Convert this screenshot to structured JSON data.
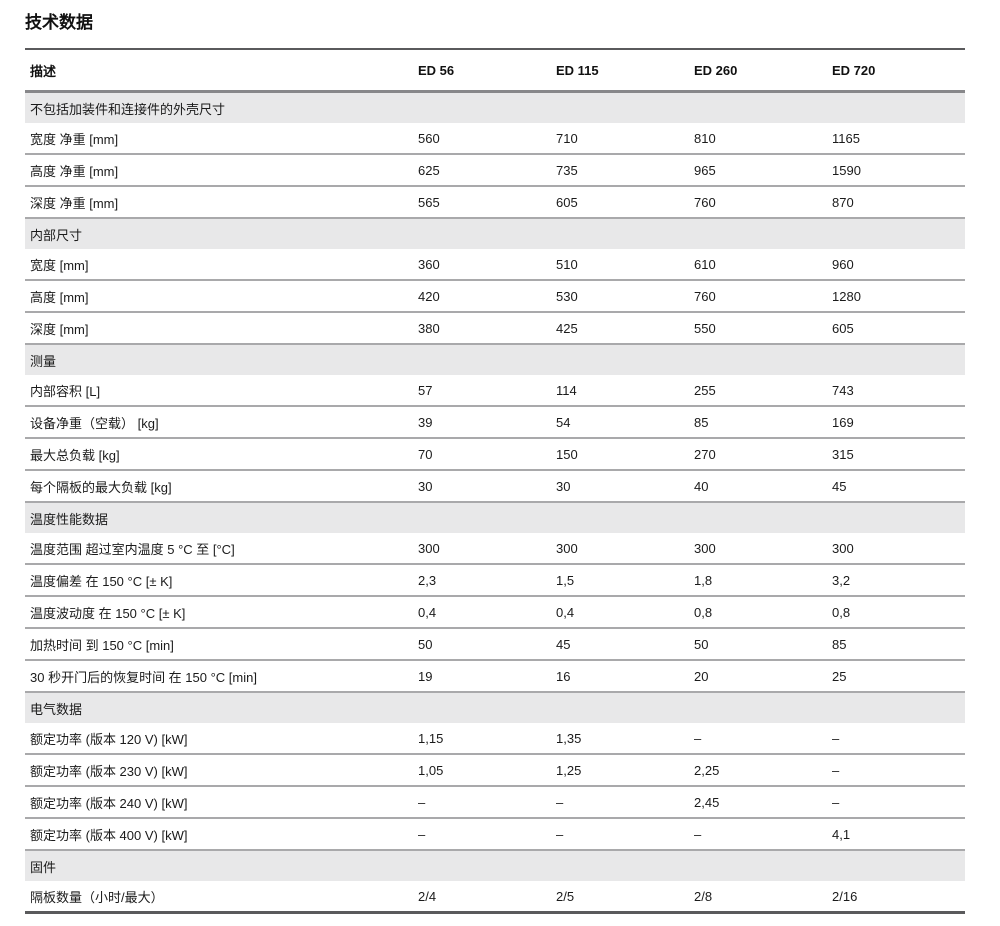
{
  "page_title": "技术数据",
  "colors": {
    "section_row_background": "#e8e8e9",
    "row_separator_line": "#a9a9ab",
    "table_border_line": "#5a5a5c"
  },
  "table": {
    "columns": [
      "描述",
      "ED 56",
      "ED 115",
      "ED 260",
      "ED 720"
    ],
    "sections": [
      {
        "header": "不包括加装件和连接件的外壳尺寸",
        "rows": [
          {
            "label": "宽度 净重 [mm]",
            "values": [
              "560",
              "710",
              "810",
              "1165"
            ]
          },
          {
            "label": "高度 净重 [mm]",
            "values": [
              "625",
              "735",
              "965",
              "1590"
            ]
          },
          {
            "label": "深度 净重 [mm]",
            "values": [
              "565",
              "605",
              "760",
              "870"
            ]
          }
        ]
      },
      {
        "header": "内部尺寸",
        "rows": [
          {
            "label": "宽度 [mm]",
            "values": [
              "360",
              "510",
              "610",
              "960"
            ]
          },
          {
            "label": "高度 [mm]",
            "values": [
              "420",
              "530",
              "760",
              "1280"
            ]
          },
          {
            "label": "深度 [mm]",
            "values": [
              "380",
              "425",
              "550",
              "605"
            ]
          }
        ]
      },
      {
        "header": "测量",
        "rows": [
          {
            "label": "内部容积 [L]",
            "values": [
              "57",
              "114",
              "255",
              "743"
            ]
          },
          {
            "label": "设备净重（空载） [kg]",
            "values": [
              "39",
              "54",
              "85",
              "169"
            ]
          },
          {
            "label": "最大总负载 [kg]",
            "values": [
              "70",
              "150",
              "270",
              "315"
            ]
          },
          {
            "label": "每个隔板的最大负载 [kg]",
            "values": [
              "30",
              "30",
              "40",
              "45"
            ]
          }
        ]
      },
      {
        "header": "温度性能数据",
        "rows": [
          {
            "label": "温度范围 超过室内温度 5 °C 至 [°C]",
            "values": [
              "300",
              "300",
              "300",
              "300"
            ]
          },
          {
            "label": "温度偏差 在 150 °C [± K]",
            "values": [
              "2,3",
              "1,5",
              "1,8",
              "3,2"
            ]
          },
          {
            "label": "温度波动度 在 150 °C [± K]",
            "values": [
              "0,4",
              "0,4",
              "0,8",
              "0,8"
            ]
          },
          {
            "label": "加热时间 到 150 °C [min]",
            "values": [
              "50",
              "45",
              "50",
              "85"
            ]
          },
          {
            "label": "30 秒开门后的恢复时间 在 150 °C [min]",
            "values": [
              "19",
              "16",
              "20",
              "25"
            ]
          }
        ]
      },
      {
        "header": "电气数据",
        "rows": [
          {
            "label": "额定功率 (版本 120 V) [kW]",
            "values": [
              "1,15",
              "1,35",
              "–",
              "–"
            ]
          },
          {
            "label": "额定功率 (版本 230 V) [kW]",
            "values": [
              "1,05",
              "1,25",
              "2,25",
              "–"
            ]
          },
          {
            "label": "额定功率 (版本 240 V) [kW]",
            "values": [
              "–",
              "–",
              "2,45",
              "–"
            ]
          },
          {
            "label": "额定功率 (版本 400 V) [kW]",
            "values": [
              "–",
              "–",
              "–",
              "4,1"
            ]
          }
        ]
      },
      {
        "header": "固件",
        "rows": [
          {
            "label": "隔板数量（小时/最大）",
            "values": [
              "2/4",
              "2/5",
              "2/8",
              "2/16"
            ]
          }
        ]
      }
    ]
  }
}
